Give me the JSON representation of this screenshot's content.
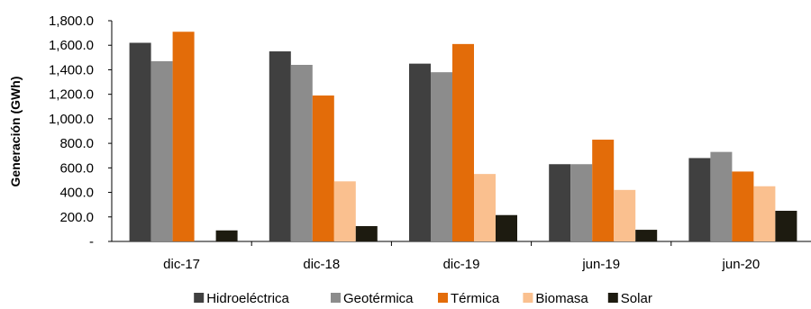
{
  "chart_data": {
    "type": "bar",
    "title": "",
    "xlabel": "",
    "ylabel": "Generación (GWh)",
    "ylim": [
      0,
      1800
    ],
    "ytick_labels": [
      "-",
      "200.0",
      "400.0",
      "600.0",
      "800.0",
      "1,000.0",
      "1,200.0",
      "1,400.0",
      "1,600.0",
      "1,800.0"
    ],
    "categories": [
      "dic-17",
      "dic-18",
      "dic-19",
      "jun-19",
      "jun-20"
    ],
    "grid": false,
    "legend_position": "bottom",
    "series": [
      {
        "name": "Hidroeléctrica",
        "color": "#404040",
        "values": [
          1620,
          1550,
          1450,
          630,
          680
        ]
      },
      {
        "name": "Geotérmica",
        "color": "#8c8c8c",
        "values": [
          1470,
          1440,
          1380,
          630,
          730
        ]
      },
      {
        "name": "Térmica",
        "color": "#e36c09",
        "values": [
          1710,
          1190,
          1610,
          830,
          570
        ]
      },
      {
        "name": "Biomasa",
        "color": "#fac08f",
        "values": [
          0,
          490,
          550,
          420,
          450
        ]
      },
      {
        "name": "Solar",
        "color": "#1d1b10",
        "values": [
          90,
          125,
          215,
          95,
          250
        ]
      }
    ]
  }
}
